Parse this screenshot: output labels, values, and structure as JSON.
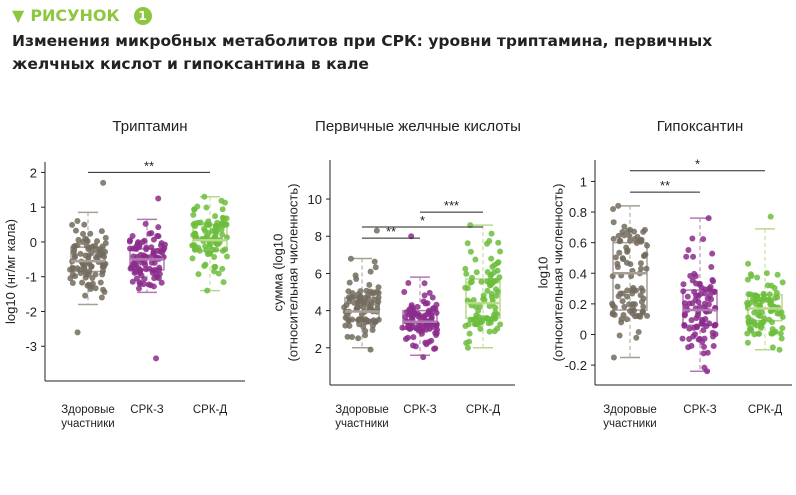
{
  "header": {
    "label": "РИСУНОК",
    "number": "1",
    "marker": "triangle-down-icon"
  },
  "title": "Изменения микробных метаболитов при СРК: уровни триптамина, первичных желчных кислот и гипоксантина в кале",
  "colors": {
    "accent": "#8dc63f",
    "healthy": "#736b5e",
    "ibs_c": "#8b2c8c",
    "ibs_d": "#6cbd3c"
  },
  "chart_data": [
    {
      "type": "box",
      "title": "Триптамин",
      "ylabel": "log10 (нг/мг кала)",
      "categories": [
        "Здоровые участники",
        "СРК-З",
        "СРК-Д"
      ],
      "ylim": [
        -4,
        2.3
      ],
      "yticks": [
        2,
        1,
        0,
        -1,
        -2,
        -3
      ],
      "boxes": [
        {
          "q1": -0.85,
          "median": -0.55,
          "q3": -0.15,
          "wlo": -1.8,
          "whi": 0.85,
          "min": -2.6,
          "max": 1.7
        },
        {
          "q1": -0.8,
          "median": -0.5,
          "q3": -0.2,
          "wlo": -1.45,
          "whi": 0.65,
          "min": -3.35,
          "max": 1.25
        },
        {
          "q1": -0.25,
          "median": 0.05,
          "q3": 0.5,
          "wlo": -1.4,
          "whi": 1.3,
          "min": -1.4,
          "max": 1.3
        }
      ],
      "significance": [
        {
          "from": 0,
          "to": 2,
          "label": "**",
          "y": 2.0
        }
      ]
    },
    {
      "type": "box",
      "title": "Первичные желчные кислоты",
      "ylabel": "сумма (log10 (относительная численность)",
      "categories": [
        "Здоровые участники",
        "СРК-З",
        "СРК-Д"
      ],
      "ylim": [
        0,
        12.1
      ],
      "yticks": [
        10,
        8,
        6,
        4,
        2
      ],
      "boxes": [
        {
          "q1": 3.5,
          "median": 3.95,
          "q3": 4.7,
          "wlo": 2.0,
          "whi": 6.8,
          "min": 1.9,
          "max": 8.3
        },
        {
          "q1": 3.0,
          "median": 3.4,
          "q3": 4.0,
          "wlo": 1.6,
          "whi": 5.8,
          "min": 1.5,
          "max": 8.0
        },
        {
          "q1": 3.6,
          "median": 4.4,
          "q3": 5.7,
          "wlo": 2.0,
          "whi": 8.6,
          "min": 2.0,
          "max": 8.6
        }
      ],
      "significance": [
        {
          "from": 1,
          "to": 2,
          "label": "***",
          "y": 9.3
        },
        {
          "from": 0,
          "to": 2,
          "label": "*",
          "y": 8.5
        },
        {
          "from": 0,
          "to": 1,
          "label": "**",
          "y": 7.9
        }
      ]
    },
    {
      "type": "box",
      "title": "Гипоксантин",
      "ylabel": "log10 (относительная численность)",
      "categories": [
        "Здоровые участники",
        "СРК-З",
        "СРК-Д"
      ],
      "ylim": [
        -0.33,
        1.14
      ],
      "yticks": [
        1,
        0.8,
        0.6,
        0.4,
        0.2,
        0,
        -0.2
      ],
      "boxes": [
        {
          "q1": 0.16,
          "median": 0.4,
          "q3": 0.6,
          "wlo": -0.15,
          "whi": 0.84,
          "min": -0.15,
          "max": 0.84
        },
        {
          "q1": 0.06,
          "median": 0.16,
          "q3": 0.29,
          "wlo": -0.24,
          "whi": 0.76,
          "min": -0.24,
          "max": 0.76
        },
        {
          "q1": 0.09,
          "median": 0.17,
          "q3": 0.26,
          "wlo": -0.1,
          "whi": 0.69,
          "min": -0.1,
          "max": 0.77
        }
      ],
      "significance": [
        {
          "from": 0,
          "to": 2,
          "label": "*",
          "y": 1.07
        },
        {
          "from": 0,
          "to": 1,
          "label": "**",
          "y": 0.93
        }
      ]
    }
  ]
}
